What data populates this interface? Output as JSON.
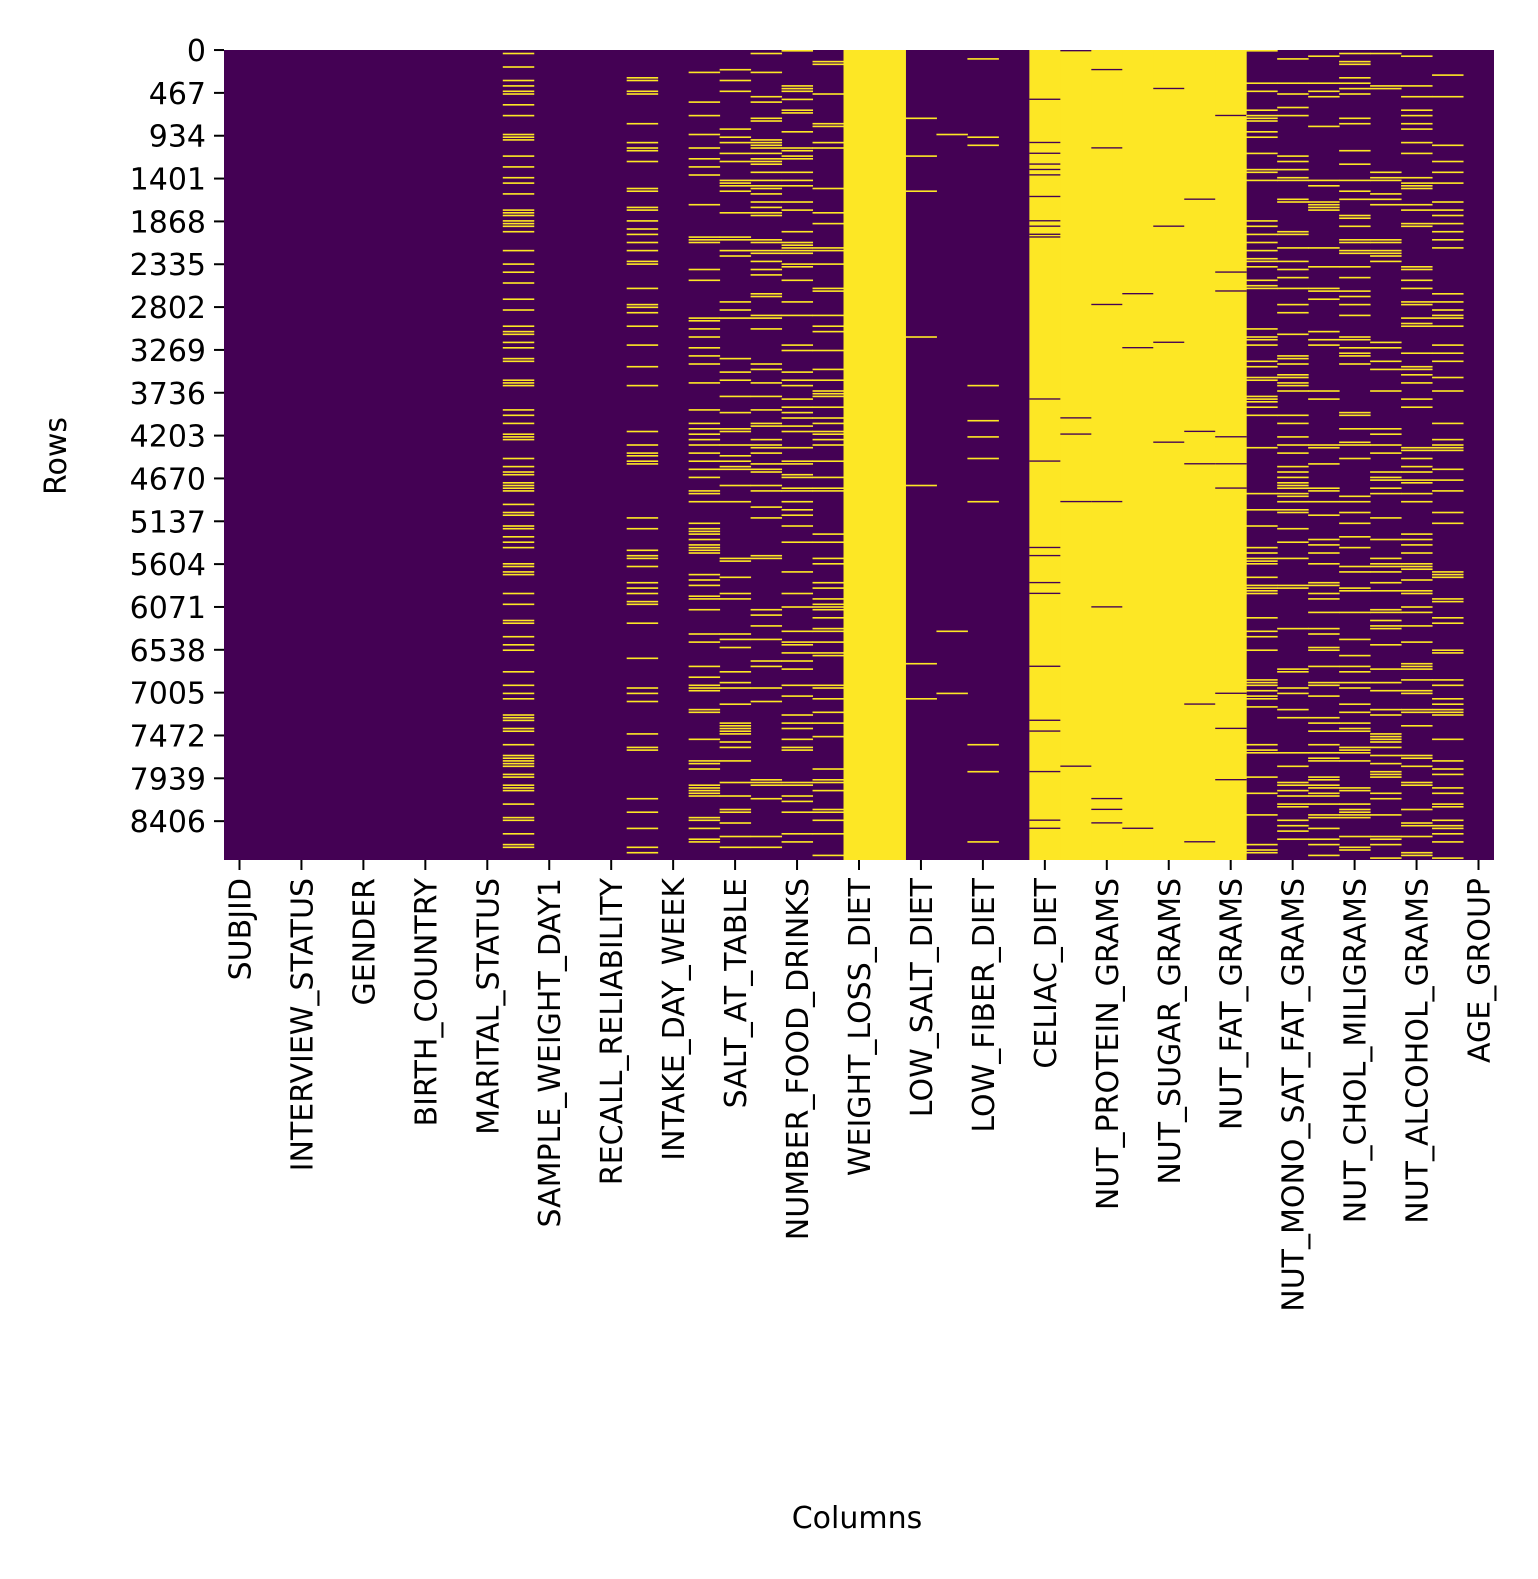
{
  "chart_data": {
    "type": "heatmap",
    "title": "",
    "xlabel": "Columns",
    "ylabel": "Rows",
    "value_meaning": {
      "0": "present",
      "1": "missing"
    },
    "colors": {
      "present": "#440154",
      "missing": "#fde725"
    },
    "colorbar": false,
    "grid": false,
    "row_count": 8830,
    "y_ticks": [
      0,
      467,
      934,
      1401,
      1868,
      2335,
      2802,
      3269,
      3736,
      4203,
      4670,
      5137,
      5604,
      6071,
      6538,
      7005,
      7472,
      7939,
      8406
    ],
    "x_tick_labels": [
      "SUBJID",
      "INTERVIEW_STATUS",
      "GENDER",
      "BIRTH_COUNTRY",
      "MARITAL_STATUS",
      "SAMPLE_WEIGHT_DAY1",
      "RECALL_RELIABILITY",
      "INTAKE_DAY_WEEK",
      "SALT_AT_TABLE",
      "NUMBER_FOOD_DRINKS",
      "WEIGHT_LOSS_DIET",
      "LOW_SALT_DIET",
      "LOW_FIBER_DIET",
      "CELIAC_DIET",
      "NUT_PROTEIN_GRAMS",
      "NUT_SUGAR_GRAMS",
      "NUT_FAT_GRAMS",
      "NUT_MONO_SAT_FAT_GRAMS",
      "NUT_CHOL_MILIGRAMS",
      "NUT_ALCOHOL_GRAMS",
      "AGE_GROUP"
    ],
    "columns_count": 41,
    "column_missing_share": [
      0,
      0,
      0,
      0,
      0,
      0,
      0,
      0,
      0,
      0.35,
      0,
      0,
      0,
      0.18,
      0,
      0.22,
      0.22,
      0.22,
      0.22,
      0.22,
      1.0,
      1.0,
      0.02,
      0.02,
      0.02,
      0,
      0.92,
      0.97,
      0.97,
      0.99,
      0.99,
      0.99,
      0.97,
      0.22,
      0.22,
      0.22,
      0.22,
      0.22,
      0.22,
      0.22,
      0
    ]
  }
}
